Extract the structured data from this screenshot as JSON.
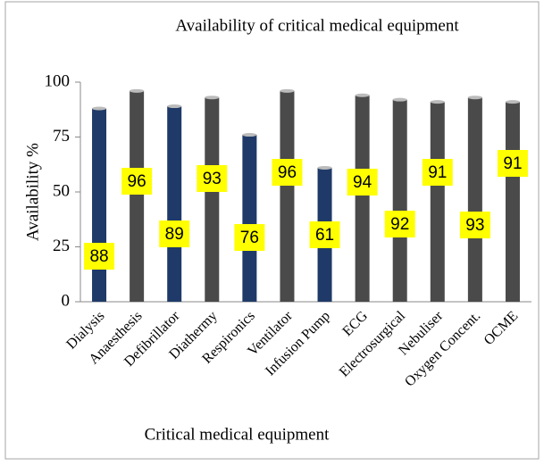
{
  "chart_data": {
    "type": "bar",
    "title": "Availability of critical medical equipment",
    "x_label": "Critical medical equipment",
    "y_label": "Availability %",
    "categories": [
      "Dialysis",
      "Anaesthesis",
      "Defibrillator",
      "Diathermy",
      "Respironics",
      "Ventilator",
      "Infusion Pump",
      "ECG",
      "Electrosurgical",
      "Nebuliser",
      "Oxygen Concent.",
      "OCME"
    ],
    "values": [
      88,
      96,
      89,
      93,
      76,
      96,
      61,
      94,
      92,
      91,
      93,
      91
    ],
    "colors": [
      "#1f3a68",
      "#4a4a4a",
      "#1f3a68",
      "#4a4a4a",
      "#1f3a68",
      "#4a4a4a",
      "#1f3a68",
      "#4a4a4a",
      "#4a4a4a",
      "#4a4a4a",
      "#4a4a4a",
      "#4a4a4a"
    ],
    "ylim": [
      0,
      100
    ],
    "yticks": [
      0,
      25,
      50,
      75,
      100
    ],
    "grid": false
  }
}
